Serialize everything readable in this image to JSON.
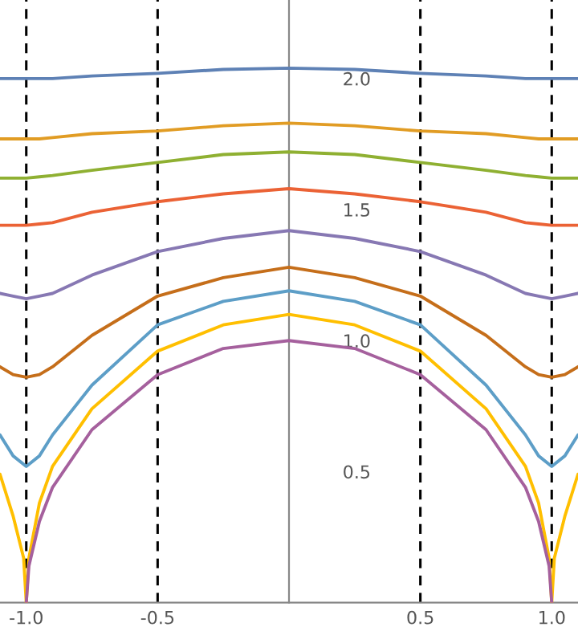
{
  "chart_data": {
    "type": "line",
    "xlim": [
      -1.1,
      1.1
    ],
    "ylim": [
      0,
      2.3
    ],
    "xticks": [
      {
        "value": -1,
        "label": "-1.0"
      },
      {
        "value": -0.5,
        "label": "-0.5"
      },
      {
        "value": 0.5,
        "label": "0.5"
      },
      {
        "value": 1,
        "label": "1.0"
      }
    ],
    "yticks": [
      {
        "value": 0.5,
        "label": "0.5"
      },
      {
        "value": 1,
        "label": "1.0"
      },
      {
        "value": 1.5,
        "label": "1.5"
      },
      {
        "value": 2,
        "label": "2.0"
      }
    ],
    "grid": false,
    "legend": false,
    "marker": "none",
    "line_style": "solid",
    "ref_lines": [
      {
        "axis": "x",
        "value": -1,
        "color": "#000000",
        "line_style": "dashed"
      },
      {
        "axis": "x",
        "value": -0.5,
        "color": "#000000",
        "line_style": "dashed"
      },
      {
        "axis": "x",
        "value": 0.5,
        "color": "#000000",
        "line_style": "dashed"
      },
      {
        "axis": "x",
        "value": 1,
        "color": "#000000",
        "line_style": "dashed"
      }
    ],
    "x": [
      -1.1,
      -1.05,
      -1,
      -0.95,
      -0.9,
      -0.75,
      -0.5,
      -0.25,
      0,
      0.25,
      0.5,
      0.75,
      0.9,
      0.95,
      1,
      1.05,
      1.1
    ],
    "series": [
      {
        "color": "#5e81b5",
        "values": [
          2.0,
          2.0,
          2.0,
          2.0,
          2.0,
          2.01,
          2.02,
          2.035,
          2.04,
          2.035,
          2.02,
          2.01,
          2.0,
          2.0,
          2.0,
          2.0,
          2.0
        ]
      },
      {
        "color": "#e19c24",
        "values": [
          1.77,
          1.77,
          1.77,
          1.77,
          1.775,
          1.79,
          1.8,
          1.82,
          1.83,
          1.82,
          1.8,
          1.79,
          1.775,
          1.77,
          1.77,
          1.77,
          1.77
        ]
      },
      {
        "color": "#8fb032",
        "values": [
          1.62,
          1.62,
          1.62,
          1.625,
          1.63,
          1.65,
          1.68,
          1.71,
          1.72,
          1.71,
          1.68,
          1.65,
          1.63,
          1.625,
          1.62,
          1.62,
          1.62
        ]
      },
      {
        "color": "#eb6235",
        "values": [
          1.44,
          1.44,
          1.44,
          1.445,
          1.45,
          1.49,
          1.53,
          1.56,
          1.58,
          1.56,
          1.53,
          1.49,
          1.45,
          1.445,
          1.44,
          1.44,
          1.44
        ]
      },
      {
        "color": "#8778b3",
        "values": [
          1.18,
          1.17,
          1.16,
          1.17,
          1.18,
          1.25,
          1.34,
          1.39,
          1.42,
          1.39,
          1.34,
          1.25,
          1.18,
          1.17,
          1.16,
          1.17,
          1.18
        ]
      },
      {
        "color": "#c56e1a",
        "values": [
          0.9,
          0.87,
          0.86,
          0.87,
          0.9,
          1.02,
          1.17,
          1.24,
          1.28,
          1.24,
          1.17,
          1.02,
          0.9,
          0.87,
          0.86,
          0.87,
          0.9
        ]
      },
      {
        "color": "#5d9ec7",
        "values": [
          0.64,
          0.56,
          0.52,
          0.56,
          0.64,
          0.83,
          1.06,
          1.15,
          1.19,
          1.15,
          1.06,
          0.83,
          0.64,
          0.56,
          0.52,
          0.56,
          0.64
        ]
      },
      {
        "color": "#ffbf00",
        "x": [
          -1.1,
          -1.05,
          -1.01,
          -1,
          -0.99,
          -0.95,
          -0.9,
          -0.75,
          -0.5,
          -0.25,
          0,
          0.25,
          0.5,
          0.75,
          0.9,
          0.95,
          0.99,
          1,
          1.01,
          1.05,
          1.1
        ],
        "values": [
          0.49,
          0.33,
          0.17,
          0,
          0.17,
          0.38,
          0.52,
          0.74,
          0.96,
          1.06,
          1.1,
          1.06,
          0.96,
          0.74,
          0.52,
          0.38,
          0.17,
          0,
          0.17,
          0.33,
          0.49
        ]
      },
      {
        "color": "#a5609d",
        "x": [
          -1,
          -0.99,
          -0.95,
          -0.9,
          -0.75,
          -0.5,
          -0.25,
          0,
          0.25,
          0.5,
          0.75,
          0.9,
          0.95,
          0.99,
          1
        ],
        "values": [
          0,
          0.14,
          0.31,
          0.44,
          0.66,
          0.87,
          0.97,
          1.0,
          0.97,
          0.87,
          0.66,
          0.44,
          0.31,
          0.14,
          0
        ]
      }
    ]
  }
}
